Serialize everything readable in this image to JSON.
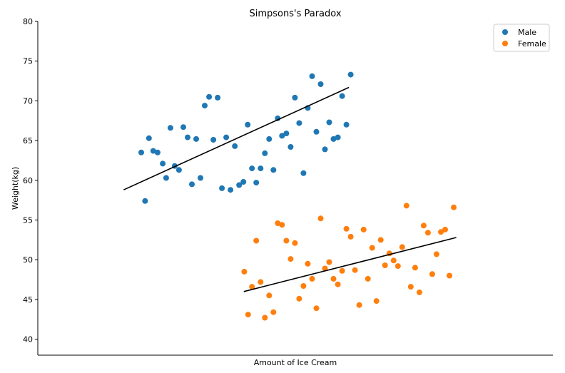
{
  "chart_data": {
    "type": "scatter",
    "title": "Simpsons's Paradox",
    "xlabel": "Amount of Ice Cream",
    "ylabel": "Weight(kg)",
    "xlim": [
      0,
      120
    ],
    "ylim": [
      38,
      80
    ],
    "yticks": [
      40,
      45,
      50,
      55,
      60,
      65,
      70,
      75,
      80
    ],
    "xticks_shown": false,
    "grid": false,
    "legend_position": "top-right",
    "series": [
      {
        "name": "Male",
        "color": "#1f77b4",
        "points": [
          [
            24.1,
            63.5
          ],
          [
            25.0,
            57.4
          ],
          [
            25.9,
            65.3
          ],
          [
            26.9,
            63.7
          ],
          [
            27.9,
            63.5
          ],
          [
            29.1,
            62.1
          ],
          [
            29.9,
            60.3
          ],
          [
            30.9,
            66.6
          ],
          [
            31.9,
            61.8
          ],
          [
            32.9,
            61.3
          ],
          [
            33.9,
            66.7
          ],
          [
            34.9,
            65.4
          ],
          [
            35.9,
            59.5
          ],
          [
            36.9,
            65.2
          ],
          [
            37.9,
            60.3
          ],
          [
            38.9,
            69.4
          ],
          [
            39.9,
            70.5
          ],
          [
            40.9,
            65.1
          ],
          [
            41.9,
            70.4
          ],
          [
            42.9,
            59.0
          ],
          [
            43.9,
            65.4
          ],
          [
            44.9,
            58.8
          ],
          [
            45.9,
            64.3
          ],
          [
            46.9,
            59.4
          ],
          [
            47.9,
            59.8
          ],
          [
            48.9,
            67.0
          ],
          [
            49.9,
            61.5
          ],
          [
            50.9,
            59.7
          ],
          [
            51.9,
            61.5
          ],
          [
            52.9,
            63.4
          ],
          [
            53.9,
            65.2
          ],
          [
            54.9,
            61.3
          ],
          [
            55.9,
            67.8
          ],
          [
            56.9,
            65.6
          ],
          [
            57.9,
            65.9
          ],
          [
            58.9,
            64.2
          ],
          [
            59.9,
            70.4
          ],
          [
            60.9,
            67.2
          ],
          [
            61.9,
            60.9
          ],
          [
            62.9,
            69.1
          ],
          [
            63.9,
            73.1
          ],
          [
            64.9,
            66.1
          ],
          [
            65.9,
            72.1
          ],
          [
            66.9,
            63.9
          ],
          [
            67.9,
            67.3
          ],
          [
            68.9,
            65.2
          ],
          [
            69.9,
            65.4
          ],
          [
            70.9,
            70.6
          ],
          [
            71.9,
            67.0
          ],
          [
            72.9,
            73.3
          ]
        ],
        "trend": [
          [
            20.0,
            58.8
          ],
          [
            72.5,
            71.7
          ]
        ]
      },
      {
        "name": "Female",
        "color": "#ff7f0e",
        "points": [
          [
            48.1,
            48.5
          ],
          [
            49.0,
            43.1
          ],
          [
            49.9,
            46.6
          ],
          [
            50.9,
            52.4
          ],
          [
            51.9,
            47.2
          ],
          [
            52.9,
            42.7
          ],
          [
            53.9,
            45.5
          ],
          [
            54.9,
            43.4
          ],
          [
            55.9,
            54.6
          ],
          [
            56.9,
            54.4
          ],
          [
            57.9,
            52.4
          ],
          [
            58.9,
            50.1
          ],
          [
            59.9,
            52.1
          ],
          [
            60.9,
            45.1
          ],
          [
            61.9,
            46.7
          ],
          [
            62.9,
            49.5
          ],
          [
            63.9,
            47.6
          ],
          [
            64.9,
            43.9
          ],
          [
            65.9,
            55.2
          ],
          [
            66.9,
            48.9
          ],
          [
            67.9,
            49.7
          ],
          [
            68.9,
            47.6
          ],
          [
            69.9,
            46.9
          ],
          [
            70.9,
            48.6
          ],
          [
            71.9,
            53.9
          ],
          [
            72.9,
            52.9
          ],
          [
            73.9,
            48.7
          ],
          [
            74.9,
            44.3
          ],
          [
            75.9,
            53.8
          ],
          [
            76.9,
            47.6
          ],
          [
            77.9,
            51.5
          ],
          [
            78.9,
            44.8
          ],
          [
            79.9,
            52.5
          ],
          [
            80.9,
            49.3
          ],
          [
            81.9,
            50.8
          ],
          [
            82.9,
            49.9
          ],
          [
            83.9,
            49.2
          ],
          [
            84.9,
            51.6
          ],
          [
            85.9,
            56.8
          ],
          [
            86.9,
            46.6
          ],
          [
            87.9,
            49.0
          ],
          [
            88.9,
            45.9
          ],
          [
            89.9,
            54.3
          ],
          [
            90.9,
            53.4
          ],
          [
            91.9,
            48.2
          ],
          [
            92.9,
            50.7
          ],
          [
            93.9,
            53.5
          ],
          [
            94.9,
            53.8
          ],
          [
            95.9,
            48.0
          ],
          [
            96.9,
            56.6
          ]
        ],
        "trend": [
          [
            48.0,
            46.0
          ],
          [
            97.5,
            52.8
          ]
        ]
      }
    ]
  }
}
